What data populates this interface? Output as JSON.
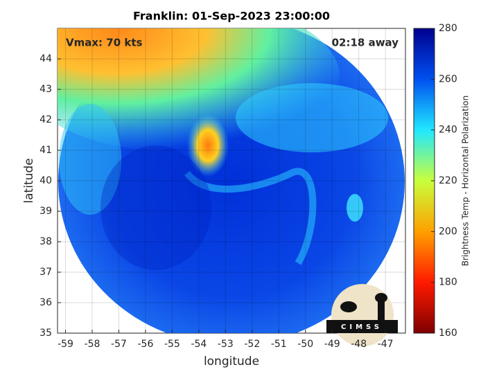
{
  "chart_data": {
    "type": "image",
    "title": "Franklin: 01-Sep-2023 23:00:00",
    "annotations": [
      "Vmax: 70 kts",
      "02:18 away"
    ],
    "xlabel": "longitude",
    "ylabel": "latitude",
    "xlim": [
      -59.3,
      -46.25
    ],
    "ylim": [
      35,
      45
    ],
    "xticks": [
      -59,
      -58,
      -57,
      -56,
      -55,
      -54,
      -53,
      -52,
      -51,
      -50,
      -49,
      -48,
      -47
    ],
    "yticks": [
      35,
      36,
      37,
      38,
      39,
      40,
      41,
      42,
      43,
      44
    ],
    "grid": true,
    "colorbar": {
      "label": "Brightness Temp - Horizontal Polarization",
      "lim": [
        160,
        280
      ],
      "ticks": [
        160,
        180,
        200,
        220,
        240,
        260,
        280
      ],
      "colors": [
        "#7f0000",
        "#ff1a00",
        "#ffa000",
        "#c8ff3c",
        "#20e8ff",
        "#0050f0",
        "#00008f"
      ]
    },
    "logo": "CIMSS"
  }
}
